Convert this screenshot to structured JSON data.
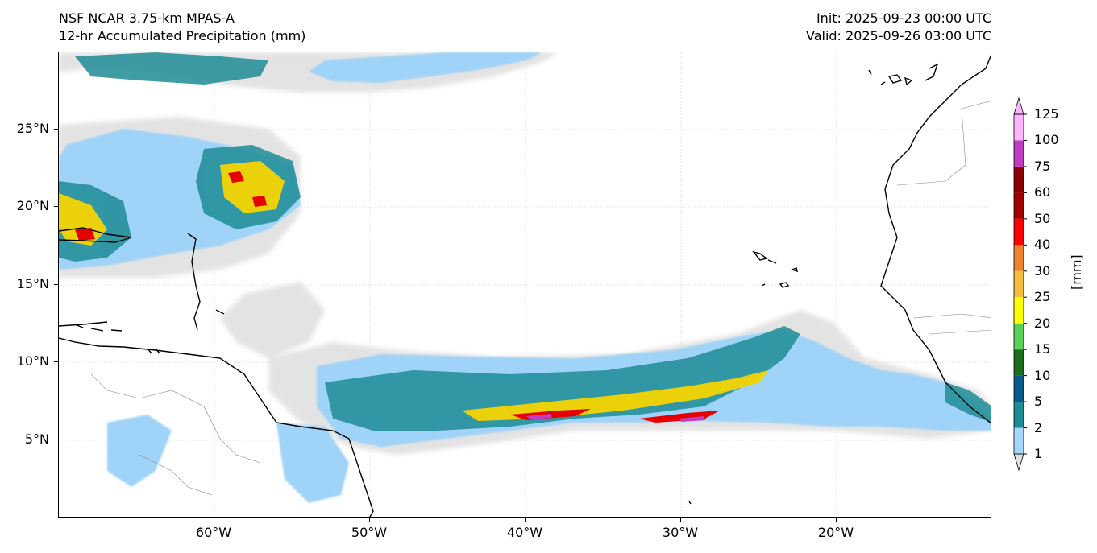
{
  "header": {
    "title_line1": "NSF NCAR 3.75-km MPAS-A",
    "title_line2": "12-hr Accumulated Precipitation (mm)",
    "init": "Init: 2025-09-23 00:00 UTC",
    "valid": "Valid: 2025-09-26 03:00 UTC"
  },
  "map": {
    "lon_range": [
      -70,
      -10
    ],
    "lat_range": [
      0,
      30
    ],
    "lat_ticks": [
      "25°N",
      "20°N",
      "15°N",
      "10°N",
      "5°N"
    ],
    "lon_ticks": [
      "60°W",
      "50°W",
      "40°W",
      "30°W",
      "20°W"
    ]
  },
  "colorbar": {
    "unit": "[mm]",
    "levels": [
      "1",
      "2",
      "5",
      "10",
      "15",
      "20",
      "25",
      "30",
      "40",
      "50",
      "60",
      "75",
      "100",
      "125"
    ],
    "colors": [
      "#e1e1e1",
      "#a6d8ff",
      "#1e8c96",
      "#0a5a8c",
      "#1e6e1e",
      "#5ad25a",
      "#ffff00",
      "#f5be3c",
      "#f0822d",
      "#ff0000",
      "#a00000",
      "#8b0000",
      "#c03cc0",
      "#ffb4ff"
    ]
  }
}
